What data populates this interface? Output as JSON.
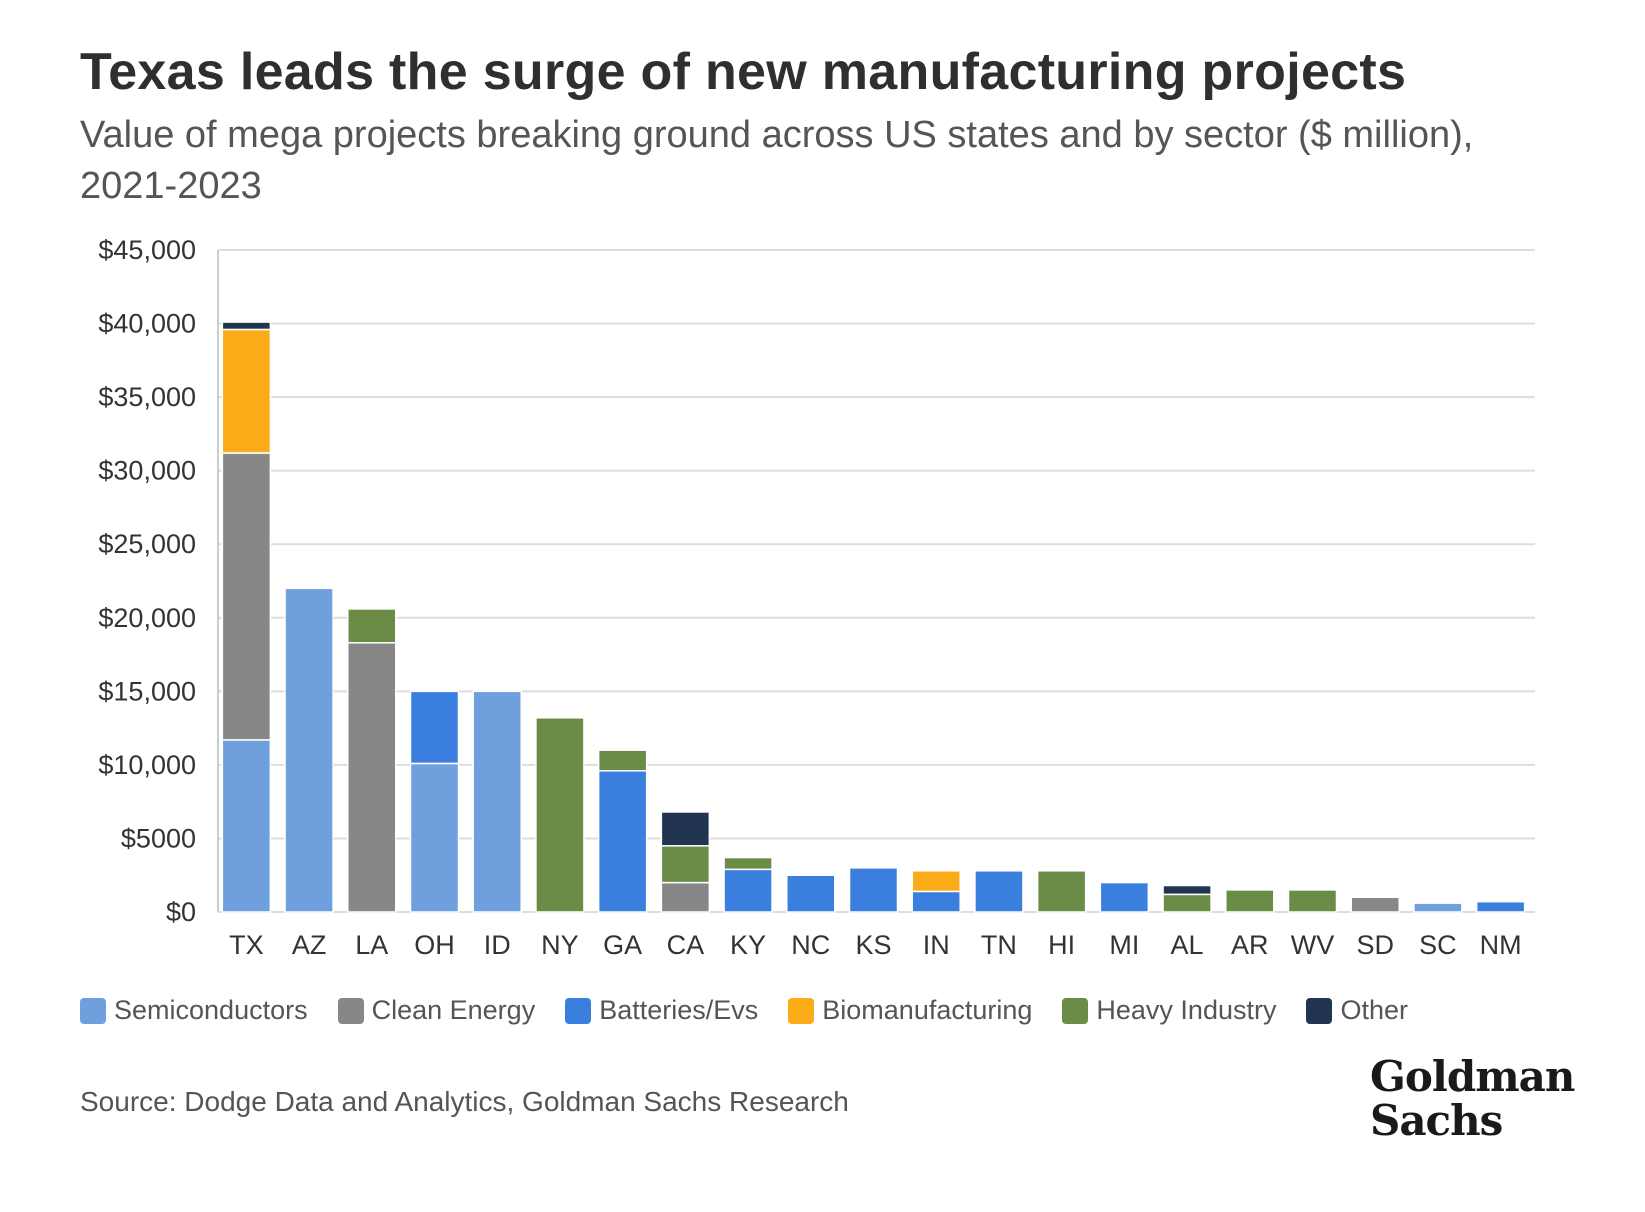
{
  "title": "Texas leads the surge of new manufacturing projects",
  "subtitle": "Value of mega projects breaking ground across US states and by sector ($ million), 2021-2023",
  "source": "Source: Dodge Data and Analytics, Goldman Sachs Research",
  "logo": {
    "line1": "Goldman",
    "line2": "Sachs"
  },
  "chart_data": {
    "type": "bar",
    "stacked": true,
    "categories": [
      "TX",
      "AZ",
      "LA",
      "OH",
      "ID",
      "NY",
      "GA",
      "CA",
      "KY",
      "NC",
      "KS",
      "IN",
      "TN",
      "HI",
      "MI",
      "AL",
      "AR",
      "WV",
      "SD",
      "SC",
      "NM"
    ],
    "ylim": [
      0,
      45000
    ],
    "yticks": [
      0,
      5000,
      10000,
      15000,
      20000,
      25000,
      30000,
      35000,
      40000,
      45000
    ],
    "ytick_labels": [
      "$0",
      "$5000",
      "$10,000",
      "$15,000",
      "$20,000",
      "$25,000",
      "$30,000",
      "$35,000",
      "$40,000",
      "$45,000"
    ],
    "grid": true,
    "legend_position": "bottom",
    "series": [
      {
        "name": "Semiconductors",
        "color": "#6f9fdc",
        "values": [
          11700,
          22000,
          0,
          10100,
          15000,
          0,
          0,
          0,
          0,
          0,
          0,
          0,
          0,
          0,
          0,
          0,
          0,
          0,
          0,
          600,
          0
        ]
      },
      {
        "name": "Clean Energy",
        "color": "#878787",
        "values": [
          19500,
          0,
          18300,
          0,
          0,
          0,
          0,
          2000,
          0,
          0,
          0,
          0,
          0,
          0,
          0,
          0,
          0,
          0,
          1000,
          0,
          0
        ]
      },
      {
        "name": "Batteries/Evs",
        "color": "#3a7fde",
        "values": [
          0,
          0,
          0,
          4900,
          0,
          0,
          9600,
          0,
          2900,
          2500,
          3000,
          1400,
          2800,
          0,
          2000,
          0,
          0,
          0,
          0,
          0,
          700
        ]
      },
      {
        "name": "Biomanufacturing",
        "color": "#fbab18",
        "values": [
          8400,
          0,
          0,
          0,
          0,
          0,
          0,
          0,
          0,
          0,
          0,
          1400,
          0,
          0,
          0,
          0,
          0,
          0,
          0,
          0,
          0
        ]
      },
      {
        "name": "Heavy Industry",
        "color": "#6b8c46",
        "values": [
          0,
          0,
          2300,
          0,
          0,
          13200,
          1400,
          2500,
          800,
          0,
          0,
          0,
          0,
          2800,
          0,
          1200,
          1500,
          1500,
          0,
          0,
          0
        ]
      },
      {
        "name": "Other",
        "color": "#223550",
        "values": [
          500,
          0,
          0,
          0,
          0,
          0,
          0,
          2300,
          0,
          0,
          0,
          0,
          0,
          0,
          0,
          600,
          0,
          0,
          0,
          0,
          0
        ]
      }
    ]
  }
}
